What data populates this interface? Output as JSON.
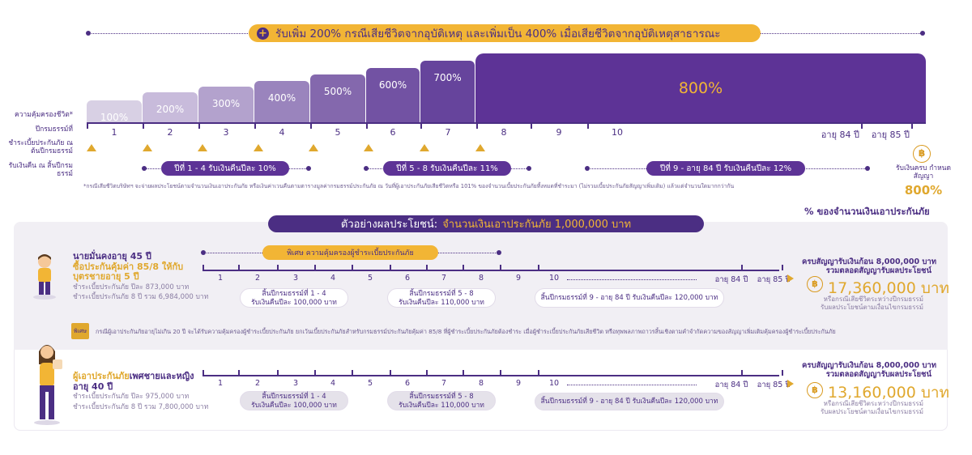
{
  "headline": "รับเพิ่ม 200% กรณีเสียชีวิตจากอุบัติเหตุ และเพิ่มเป็น 400% เมื่อเสียชีวิตจากอุบัติเหตุสาธารณะ",
  "steps": [
    "100%",
    "200%",
    "300%",
    "400%",
    "500%",
    "600%",
    "700%",
    "800%"
  ],
  "row_labels": {
    "coverage": "ความคุ้มครองชีวิต*",
    "policy_year": "ปีกรมธรรม์ที่",
    "premium": "ชำระเบี้ยประกันภัย ณ ต้นปีกรมธรรม์",
    "cashback": "รับเงินคืน ณ สิ้นปีกรมธรรม์"
  },
  "years": [
    "1",
    "2",
    "3",
    "4",
    "5",
    "6",
    "7",
    "8",
    "9",
    "10",
    "อายุ 84 ปี",
    "อายุ 85 ปี"
  ],
  "cashback_pills": [
    "ปีที่ 1 - 4 รับเงินคืนปีละ 10%",
    "ปีที่ 5 - 8 รับเงินคืนปีละ 11%",
    "ปีที่ 9 - อายุ 84 ปี รับเงินคืนปีละ 12%"
  ],
  "maturity": {
    "label": "รับเงินครบ กำหนดสัญญา",
    "value": "800%"
  },
  "footnote": "*กรณีเสียชีวิตบริษัทฯ จะจ่ายผลประโยชน์ตามจำนวนเงินเอาประกันภัย หรือเงินค่าเวนคืนตามตารางมูลค่ากรมธรรม์ประกันภัย ณ วันที่ผู้เอาประกันภัยเสียชีวิตหรือ 101% ของจำนวนเบี้ยประกันภัยที้งหมดที่ชำระมา (ไม่รวมเบี้ยประกันภัยสัญญาเพิ่มเติม) แล้วแต่จำนวนใดมากกว่ากัน",
  "percent_caption": "% ของจำนวนเงินเอาประกันภัย",
  "example_bar": {
    "label": "ตัวอย่างผลประโยชน์:",
    "value": "จำนวนเงินเอาประกันภัย 1,000,000 บาท"
  },
  "special_pill": "พิเศษ ความคุ้มครองผู้ชำระเบี้ยประกันภัย",
  "special_badge": "พิเศษ",
  "special_note": "กรณีผู้เอาประกันภัยอายุไม่เกิน 20 ปี จะได้รับความคุ้มครองผู้ชำระเบี้ยประกันภัย ยกเว้นเบี้ยประกันภัยสำหรับกรมธรรม์ประกันภัยคุ้มค่า 85/8 ที่ผู้ชำระเบี้ยประกันภัยต้องชำระ เมื่อผู้ชำระเบี้ยประกันภัยเสียชีวิต หรือทุพพลภาพถาวรสิ้นเชิงตามคำจำกัดความของสัญญาเพิ่มเติมคุ้มครองผู้ชำระเบี้ยประกันภัย",
  "timeline_years": [
    "1",
    "2",
    "3",
    "4",
    "5",
    "6",
    "7",
    "8",
    "9",
    "10",
    "อายุ 84 ปี",
    "อายุ 85 ปี"
  ],
  "example1": {
    "title": "นายมั่นคงอายุ 45 ปี",
    "plan1": "ซื้อประกันคุ้มค่า 85/8 ให้กับ",
    "plan2": "บุตรชายอายุ 5 ปี",
    "premium": "ชำระเบี้ยประกันภัย ปีละ 873,000 บาท",
    "total": "ชำระเบี้ยประกันภัย 8 ปี รวม 6,984,000 บาท",
    "boxes": [
      [
        "สิ้นปีกรมธรรม์ที่ 1 - 4",
        "รับเงินคืนปีละ 100,000 บาท"
      ],
      [
        "สิ้นปีกรมธรรม์ที่ 5 - 8",
        "รับเงินคืนปีละ 110,000 บาท"
      ],
      [
        "สิ้นปีกรมธรรม์ที่ 9 - อายุ 84 ปี รับเงินคืนปีละ 120,000 บาท"
      ]
    ],
    "sum_title1": "ครบสัญญารับเงินก้อน 8,000,000 บาท",
    "sum_title2": "รวมตลอดสัญญารับผลประโยชน์",
    "amount": "17,360,000 บาท",
    "note1": "หรือกรณีเสียชีวิตระหว่างปีกรมธรรม์",
    "note2": "รับผลประโยชน์ตามเงื่อนไขกรมธรรม์"
  },
  "example2": {
    "title_hl": "ผู้เอาประกันภัย",
    "title": "เพศชายและหญิง",
    "age": "อายุ 40 ปี",
    "premium": "ชำระเบี้ยประกันภัย ปีละ 975,000 บาท",
    "total": "ชำระเบี้ยประกันภัย 8 ปี รวม 7,800,000 บาท",
    "boxes": [
      [
        "สิ้นปีกรมธรรม์ที่ 1 - 4",
        "รับเงินคืนปีละ 100,000 บาท"
      ],
      [
        "สิ้นปีกรมธรรม์ที่ 5 - 8",
        "รับเงินคืนปีละ 110,000 บาท"
      ],
      [
        "สิ้นปีกรมธรรม์ที่ 9 - อายุ 84 ปี รับเงินคืนปีละ 120,000 บาท"
      ]
    ],
    "sum_title1": "ครบสัญญารับเงินก้อน 8,000,000 บาท",
    "sum_title2": "รวมตลอดสัญญารับผลประโยชน์",
    "amount": "13,160,000 บาท",
    "note1": "หรือกรณีเสียชีวิตระหว่างปีกรมธรรม์",
    "note2": "รับผลประโยชน์ตามเงื่อนไขกรมธรรม์"
  },
  "colors": {
    "purple": "#4b2e83",
    "gold": "#f2b535",
    "panel": "#f1eff4"
  },
  "icons": [
    "plus-icon",
    "money-bag-icon",
    "boy-figure-icon",
    "woman-figure-icon",
    "triangle-marker-icon",
    "arrow-right-icon"
  ]
}
